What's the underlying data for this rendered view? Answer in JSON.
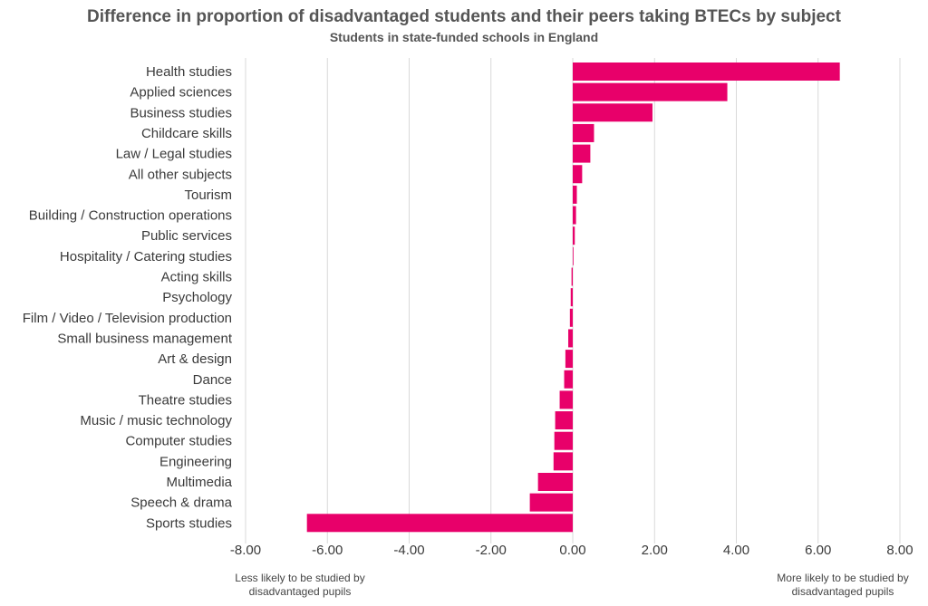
{
  "title": "Difference in proportion of disadvantaged students and their peers taking BTECs by subject",
  "subtitle": "Students in state-funded schools in England",
  "notes": {
    "left": "Less likely to be studied by disadvantaged pupils",
    "right": "More likely to be studied by disadvantaged pupils"
  },
  "colors": {
    "bar": "#E8006A",
    "grid": "#d9d9d9"
  },
  "chart_data": {
    "type": "bar",
    "orientation": "horizontal",
    "title": "Difference in proportion of disadvantaged students and their peers taking BTECs by subject",
    "subtitle": "Students in state-funded schools in England",
    "categories": [
      "Health studies",
      "Applied sciences",
      "Business studies",
      "Childcare skills",
      "Law / Legal studies",
      "All other subjects",
      "Tourism",
      "Building / Construction operations",
      "Public services",
      "Hospitality / Catering studies",
      "Acting skills",
      "Psychology",
      "Film / Video / Television production",
      "Small business management",
      "Art & design",
      "Dance",
      "Theatre studies",
      "Music / music technology",
      "Computer studies",
      "Engineering",
      "Multimedia",
      "Speech & drama",
      "Sports studies"
    ],
    "values": [
      6.53,
      3.78,
      1.95,
      0.52,
      0.43,
      0.23,
      0.1,
      0.08,
      0.05,
      0.01,
      -0.03,
      -0.05,
      -0.07,
      -0.11,
      -0.18,
      -0.21,
      -0.32,
      -0.43,
      -0.45,
      -0.47,
      -0.85,
      -1.05,
      -6.5
    ],
    "xlim": [
      -8,
      8
    ],
    "xticks": [
      -8,
      -6,
      -4,
      -2,
      0,
      2,
      4,
      6,
      8
    ],
    "xtick_labels": [
      "-8.00",
      "-6.00",
      "-4.00",
      "-2.00",
      "0.00",
      "2.00",
      "4.00",
      "6.00",
      "8.00"
    ],
    "grid": true,
    "legend": "none"
  }
}
